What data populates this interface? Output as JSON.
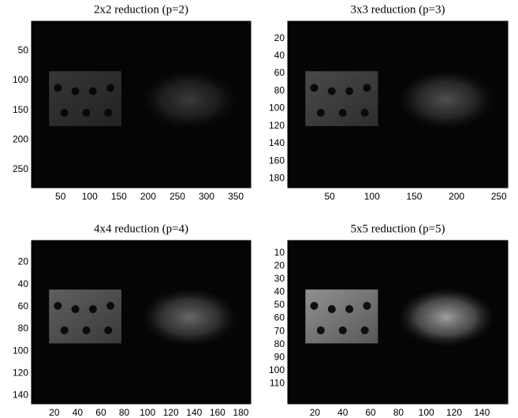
{
  "chart_data": [
    {
      "type": "image",
      "title": "2x2 reduction (p=2)",
      "xlim": [
        0.5,
        375.5
      ],
      "ylim": [
        0.5,
        280.5
      ],
      "xticks": [
        50,
        100,
        150,
        200,
        250,
        300,
        350
      ],
      "yticks": [
        50,
        100,
        150,
        200,
        250
      ],
      "brightness": 0.3
    },
    {
      "type": "image",
      "title": "3x3 reduction (p=3)",
      "xlim": [
        0.5,
        260.5
      ],
      "ylim": [
        0.5,
        190.5
      ],
      "xticks": [
        50,
        100,
        150,
        200,
        250
      ],
      "yticks": [
        20,
        40,
        60,
        80,
        100,
        120,
        140,
        160,
        180
      ],
      "brightness": 0.42
    },
    {
      "type": "image",
      "title": "4x4 reduction (p=4)",
      "xlim": [
        0.5,
        188.5
      ],
      "ylim": [
        0.5,
        147.5
      ],
      "xticks": [
        20,
        40,
        60,
        80,
        100,
        120,
        140,
        160,
        180
      ],
      "yticks": [
        20,
        40,
        60,
        80,
        100,
        120,
        140
      ],
      "brightness": 0.55
    },
    {
      "type": "image",
      "title": "5x5 reduction (p=5)",
      "xlim": [
        0.5,
        158.5
      ],
      "ylim": [
        0.5,
        125.5
      ],
      "xticks": [
        20,
        40,
        60,
        80,
        100,
        120,
        140
      ],
      "yticks": [
        10,
        20,
        30,
        40,
        50,
        60,
        70,
        80,
        90,
        100,
        110
      ],
      "brightness": 0.85
    }
  ]
}
